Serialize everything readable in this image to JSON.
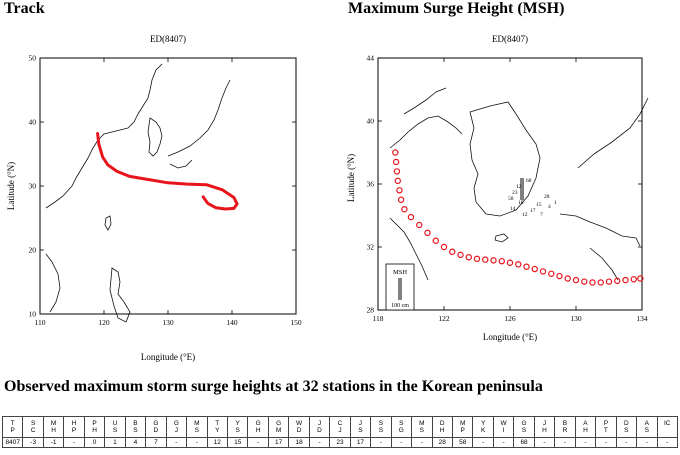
{
  "left_heading": "Track",
  "right_heading": "Maximum Surge Height (MSH)",
  "table_heading": "Observed maximum storm surge heights at 32 stations in the Korean peninsula",
  "colors": {
    "track": "#e8141c",
    "land": "#111111",
    "frame": "#000000",
    "msh_bar": "#808080"
  },
  "chart_data": [
    {
      "type": "line",
      "title": "ED(8407)",
      "xlabel": "Longitude (°E)",
      "ylabel": "Latitude (°N)",
      "xlim": [
        110,
        150
      ],
      "ylim": [
        10,
        50
      ],
      "xticks": [
        "110",
        "120",
        "130",
        "140",
        "150"
      ],
      "yticks": [
        "10",
        "20",
        "30",
        "40",
        "50"
      ],
      "grid": false,
      "series": [
        {
          "x": [
            119,
            119.2,
            119.8,
            120.6,
            122,
            124,
            127,
            130,
            133,
            136,
            138.5,
            140.3,
            140.8,
            140.3,
            139,
            137.5,
            136.2,
            135.5
          ],
          "y": [
            38.2,
            36.5,
            34.5,
            33.3,
            32.3,
            31.5,
            31.0,
            30.5,
            30.3,
            30.2,
            29.4,
            28.2,
            27.2,
            26.5,
            26.4,
            26.6,
            27.3,
            28.3
          ]
        }
      ]
    },
    {
      "type": "scatter",
      "title": "ED(8407)",
      "xlabel": "Longitude (°E)",
      "ylabel": "Latitude (°N)",
      "xlim": [
        118,
        134
      ],
      "ylim": [
        28,
        44
      ],
      "xticks": [
        "118",
        "122",
        "126",
        "130",
        "134"
      ],
      "yticks": [
        "28",
        "32",
        "36",
        "40",
        "44"
      ],
      "grid": false,
      "legend": {
        "label": "MSH",
        "scale_label": "100 cm",
        "placement": "bottom-left"
      },
      "series": [
        {
          "x": [
            119.05,
            119.1,
            119.15,
            119.2,
            119.3,
            119.4,
            119.6,
            120.0,
            120.5,
            121.0,
            121.5,
            122.0,
            122.5,
            123.0,
            123.5,
            124.0,
            124.5,
            125.0,
            125.5,
            126.0,
            126.5,
            127.0,
            127.5,
            128.0,
            128.5,
            129.0,
            129.5,
            130.0,
            130.5,
            131.0,
            131.5,
            132.0,
            132.5,
            133.0,
            133.5,
            133.9
          ],
          "y": [
            38.0,
            37.4,
            36.8,
            36.2,
            35.6,
            35.0,
            34.4,
            33.9,
            33.4,
            32.9,
            32.4,
            32.0,
            31.7,
            31.5,
            31.35,
            31.25,
            31.2,
            31.15,
            31.1,
            31.0,
            30.9,
            30.75,
            30.6,
            30.45,
            30.3,
            30.15,
            30.0,
            29.9,
            29.8,
            29.75,
            29.75,
            29.8,
            29.85,
            29.9,
            29.95,
            30.0
          ]
        }
      ],
      "station_labels": [
        "68",
        "58",
        "17",
        "15",
        "28",
        "12",
        "23",
        "18",
        "14",
        "12",
        "7",
        "4",
        "1"
      ]
    }
  ],
  "table": {
    "headers": [
      [
        "T",
        "P"
      ],
      [
        "S",
        "C"
      ],
      [
        "M",
        "H"
      ],
      [
        "H",
        "P"
      ],
      [
        "P",
        "H"
      ],
      [
        "U",
        "S"
      ],
      [
        "B",
        "S"
      ],
      [
        "G",
        "D"
      ],
      [
        "G",
        "J"
      ],
      [
        "M",
        "S"
      ],
      [
        "T",
        "Y"
      ],
      [
        "Y",
        "S"
      ],
      [
        "G",
        "H"
      ],
      [
        "G",
        "M"
      ],
      [
        "W",
        "D"
      ],
      [
        "J",
        "D"
      ],
      [
        "C",
        "J"
      ],
      [
        "J",
        "S"
      ],
      [
        "S",
        "S"
      ],
      [
        "S",
        "G"
      ],
      [
        "M",
        "S"
      ],
      [
        "D",
        "H"
      ],
      [
        "M",
        "P"
      ],
      [
        "Y",
        "K"
      ],
      [
        "W",
        "I"
      ],
      [
        "G",
        "S"
      ],
      [
        "J",
        "H"
      ],
      [
        "B",
        "R"
      ],
      [
        "A",
        "H"
      ],
      [
        "P",
        "T"
      ],
      [
        "D",
        "S"
      ],
      [
        "A",
        "S"
      ],
      [
        "IC",
        ""
      ]
    ],
    "rows": [
      [
        "8407",
        "-3",
        "-1",
        "-",
        "0",
        "1",
        "4",
        "7",
        "-",
        "-",
        "12",
        "15",
        "-",
        "17",
        "18",
        "-",
        "23",
        "17",
        "-",
        "-",
        "-",
        "28",
        "58",
        "-",
        "-",
        "68",
        "-",
        "-",
        "-",
        "-",
        "-",
        "-",
        "-"
      ]
    ]
  }
}
